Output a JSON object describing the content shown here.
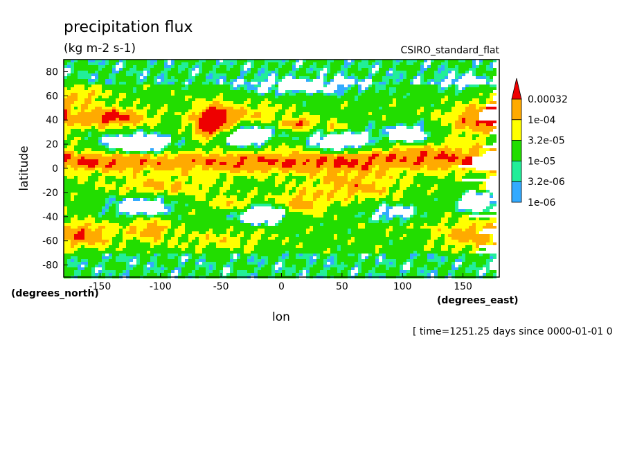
{
  "chart_data": {
    "type": "heatmap",
    "title": "precipitation flux",
    "subtitle": "(kg m-2 s-1)",
    "colormap_name": "CSIRO_standard_flat",
    "xlabel": "lon",
    "ylabel": "latitude",
    "x_units": "(degrees_east)",
    "y_units": "(degrees_north)",
    "footer": "[ time=1251.25 days since 0000-01-01 0",
    "xlim": [
      -180,
      180
    ],
    "ylim": [
      -90,
      90
    ],
    "x_ticks": [
      -150,
      -100,
      -50,
      0,
      50,
      100,
      150
    ],
    "x_tick_labels": [
      "-150",
      "-100",
      "-50",
      "0",
      "50",
      "100",
      "150"
    ],
    "y_ticks": [
      80,
      60,
      40,
      20,
      0,
      -20,
      -40,
      -60,
      -80
    ],
    "y_tick_labels": [
      "80",
      "60",
      "40",
      "20",
      "0",
      "-20",
      "-40",
      "-60",
      "-80"
    ],
    "levels": [
      "1e-06",
      "3.2e-06",
      "1e-05",
      "3.2e-05",
      "1e-04",
      "0.00032"
    ],
    "colors": {
      "below": "#ffffff",
      "bands": [
        "#33aaff",
        "#22ee99",
        "#22dd00",
        "#ffff00",
        "#ffaa00"
      ],
      "above": "#ee0000"
    },
    "field": "global precipitation flux, filled contours"
  }
}
